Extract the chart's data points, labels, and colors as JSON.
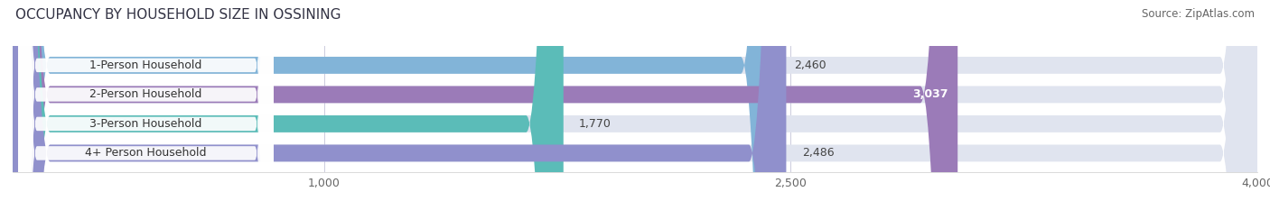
{
  "title": "OCCUPANCY BY HOUSEHOLD SIZE IN OSSINING",
  "source": "Source: ZipAtlas.com",
  "categories": [
    "1-Person Household",
    "2-Person Household",
    "3-Person Household",
    "4+ Person Household"
  ],
  "values": [
    2460,
    3037,
    1770,
    2486
  ],
  "bar_colors": [
    "#82b4d8",
    "#9b7bb8",
    "#5bbcb8",
    "#9090cc"
  ],
  "bar_bg_color": "#e0e4ef",
  "xlim": [
    0,
    4000
  ],
  "xticks": [
    1000,
    2500,
    4000
  ],
  "xtick_labels": [
    "1,000",
    "2,500",
    "4,000"
  ],
  "value_labels": [
    "2,460",
    "3,037",
    "1,770",
    "2,486"
  ],
  "label_inside": [
    false,
    true,
    false,
    false
  ],
  "title_fontsize": 11,
  "source_fontsize": 8.5,
  "bar_label_fontsize": 9,
  "category_fontsize": 9,
  "bar_height": 0.58,
  "background_color": "#ffffff",
  "label_box_color": "#ffffff",
  "label_text_color": "#333333"
}
